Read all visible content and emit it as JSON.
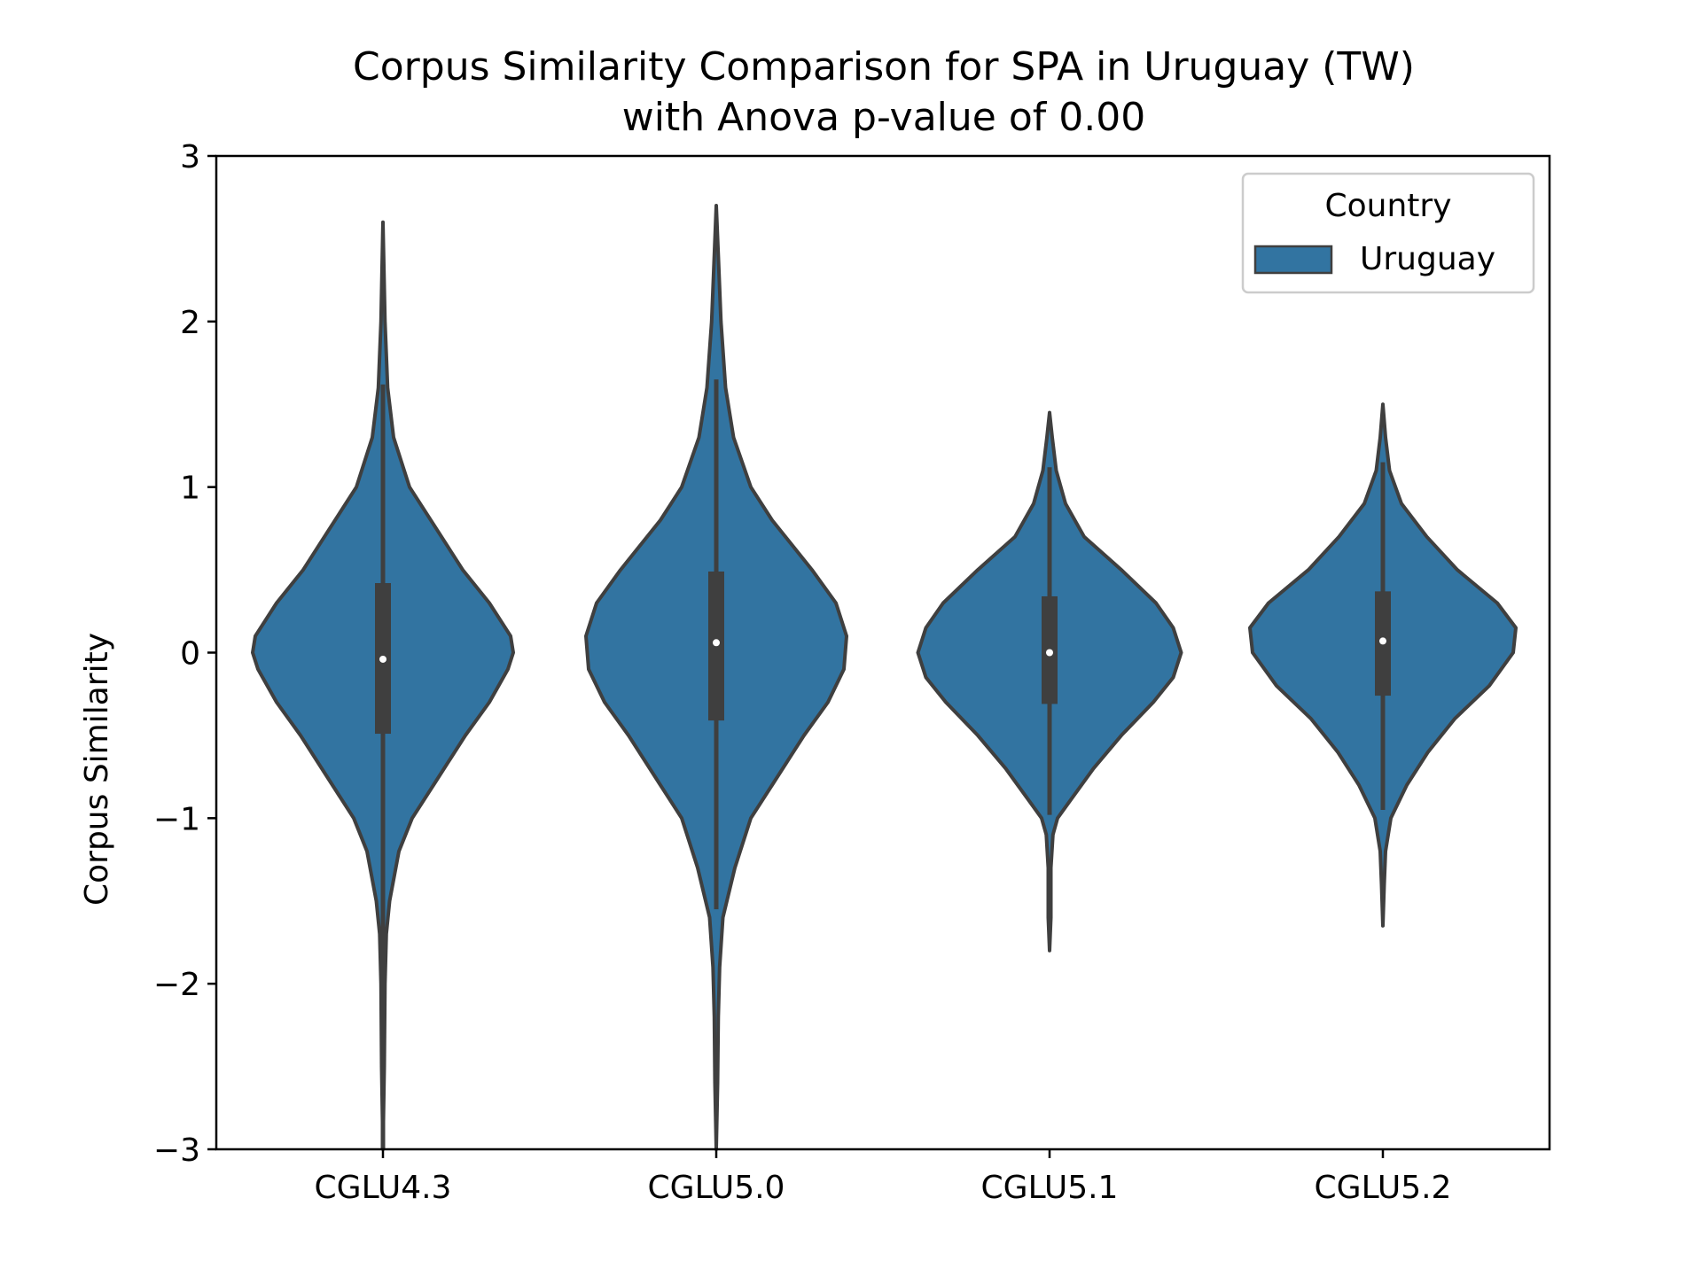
{
  "chart_data": {
    "type": "violin",
    "title_line1": "Corpus Similarity Comparison for SPA in Uruguay (TW)",
    "title_line2": "with Anova p-value of 0.00",
    "xlabel": "",
    "ylabel": "Corpus Similarity",
    "ylim": [
      -3,
      3
    ],
    "yticks": [
      3,
      2,
      1,
      0,
      -1,
      -2,
      -3
    ],
    "ytick_labels": [
      "3",
      "2",
      "1",
      "0",
      "−1",
      "−2",
      "−3"
    ],
    "categories": [
      "CGLU4.3",
      "CGLU5.0",
      "CGLU5.1",
      "CGLU5.2"
    ],
    "legend": {
      "title": "Country",
      "entries": [
        "Uruguay"
      ],
      "placement": "top-right"
    },
    "fill_color": "#3274a1",
    "edge_color": "#3f3f3f",
    "series": [
      {
        "category": "CGLU4.3",
        "median": -0.04,
        "q1": -0.49,
        "q3": 0.42,
        "whisker_low": -3.0,
        "whisker_high": 1.62,
        "density": [
          [
            -3.0,
            0.0
          ],
          [
            -2.5,
            0.01
          ],
          [
            -2.0,
            0.015
          ],
          [
            -1.7,
            0.025
          ],
          [
            -1.5,
            0.05
          ],
          [
            -1.2,
            0.12
          ],
          [
            -1.0,
            0.22
          ],
          [
            -0.8,
            0.38
          ],
          [
            -0.5,
            0.62
          ],
          [
            -0.3,
            0.8
          ],
          [
            -0.1,
            0.94
          ],
          [
            0.0,
            0.98
          ],
          [
            0.1,
            0.96
          ],
          [
            0.3,
            0.8
          ],
          [
            0.5,
            0.6
          ],
          [
            0.7,
            0.44
          ],
          [
            1.0,
            0.2
          ],
          [
            1.3,
            0.08
          ],
          [
            1.6,
            0.035
          ],
          [
            2.0,
            0.015
          ],
          [
            2.6,
            0.0
          ]
        ]
      },
      {
        "category": "CGLU5.0",
        "median": 0.06,
        "q1": -0.41,
        "q3": 0.49,
        "whisker_low": -1.55,
        "whisker_high": 1.65,
        "density": [
          [
            -3.0,
            0.0
          ],
          [
            -2.6,
            0.01
          ],
          [
            -2.2,
            0.015
          ],
          [
            -1.9,
            0.025
          ],
          [
            -1.6,
            0.05
          ],
          [
            -1.3,
            0.14
          ],
          [
            -1.0,
            0.26
          ],
          [
            -0.8,
            0.42
          ],
          [
            -0.5,
            0.66
          ],
          [
            -0.3,
            0.84
          ],
          [
            -0.1,
            0.96
          ],
          [
            0.1,
            0.98
          ],
          [
            0.3,
            0.9
          ],
          [
            0.5,
            0.72
          ],
          [
            0.8,
            0.42
          ],
          [
            1.0,
            0.26
          ],
          [
            1.3,
            0.13
          ],
          [
            1.6,
            0.07
          ],
          [
            2.0,
            0.035
          ],
          [
            2.4,
            0.015
          ],
          [
            2.7,
            0.0
          ]
        ]
      },
      {
        "category": "CGLU5.1",
        "median": 0.0,
        "q1": -0.31,
        "q3": 0.34,
        "whisker_low": -0.98,
        "whisker_high": 1.12,
        "density": [
          [
            -1.8,
            0.0
          ],
          [
            -1.6,
            0.01
          ],
          [
            -1.3,
            0.01
          ],
          [
            -1.1,
            0.025
          ],
          [
            -1.0,
            0.06
          ],
          [
            -0.9,
            0.15
          ],
          [
            -0.7,
            0.33
          ],
          [
            -0.5,
            0.54
          ],
          [
            -0.3,
            0.78
          ],
          [
            -0.15,
            0.93
          ],
          [
            0.0,
            0.99
          ],
          [
            0.15,
            0.93
          ],
          [
            0.3,
            0.8
          ],
          [
            0.5,
            0.54
          ],
          [
            0.7,
            0.26
          ],
          [
            0.9,
            0.12
          ],
          [
            1.1,
            0.05
          ],
          [
            1.3,
            0.02
          ],
          [
            1.45,
            0.0
          ]
        ]
      },
      {
        "category": "CGLU5.2",
        "median": 0.07,
        "q1": -0.26,
        "q3": 0.37,
        "whisker_low": -0.95,
        "whisker_high": 1.15,
        "density": [
          [
            -1.65,
            0.0
          ],
          [
            -1.4,
            0.01
          ],
          [
            -1.2,
            0.02
          ],
          [
            -1.0,
            0.06
          ],
          [
            -0.8,
            0.18
          ],
          [
            -0.6,
            0.34
          ],
          [
            -0.4,
            0.54
          ],
          [
            -0.2,
            0.8
          ],
          [
            0.0,
            0.98
          ],
          [
            0.15,
            1.0
          ],
          [
            0.3,
            0.86
          ],
          [
            0.5,
            0.56
          ],
          [
            0.7,
            0.33
          ],
          [
            0.9,
            0.14
          ],
          [
            1.1,
            0.05
          ],
          [
            1.3,
            0.02
          ],
          [
            1.5,
            0.0
          ]
        ]
      }
    ]
  }
}
